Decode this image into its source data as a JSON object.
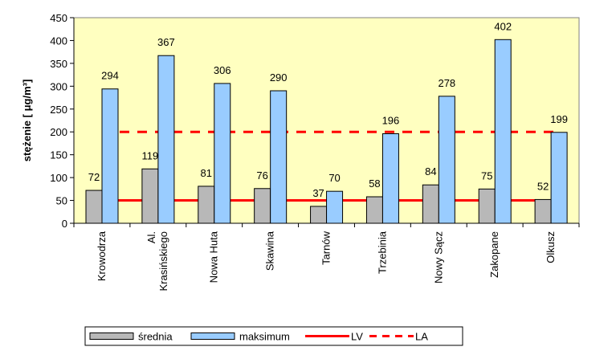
{
  "chart_data": {
    "type": "bar",
    "ylabel": "stężenie [ μg/m³]",
    "ylim": [
      0,
      450
    ],
    "yticks": [
      0,
      50,
      100,
      150,
      200,
      250,
      300,
      350,
      400,
      450
    ],
    "grid": false,
    "legend_placement": "bottom",
    "plot_background": "#FFFFC0",
    "categories": [
      "Krowodrza",
      "Al. Krasińskiego",
      "Nowa Huta",
      "Skawina",
      "Tarnów",
      "Trzebinia",
      "Nowy Sącz",
      "Zakopane",
      "Olkusz"
    ],
    "series": [
      {
        "name": "średnia",
        "color": "#B8B8B8",
        "values": [
          72,
          119,
          81,
          76,
          37,
          58,
          84,
          75,
          52
        ]
      },
      {
        "name": "maksimum",
        "color": "#99CCFF",
        "values": [
          294,
          367,
          306,
          290,
          70,
          196,
          278,
          402,
          199
        ]
      }
    ],
    "reference_lines": [
      {
        "name": "LV",
        "value": 50,
        "style": "solid",
        "color": "#FF0000"
      },
      {
        "name": "LA",
        "value": 200,
        "style": "dashed",
        "color": "#FF0000"
      }
    ]
  }
}
